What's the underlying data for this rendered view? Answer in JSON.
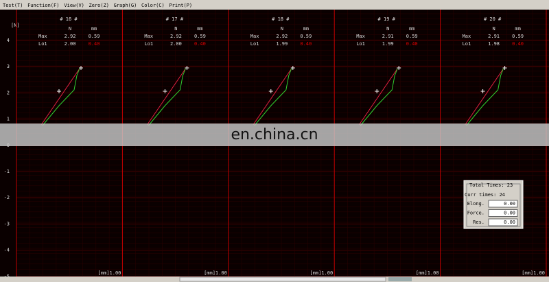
{
  "menu": [
    "Test(T)",
    "Function(F)",
    "View(V)",
    "Zero(Z)",
    "Graph(G)",
    "Color(C)",
    "Print(P)"
  ],
  "axis": {
    "unit": "[N]",
    "ticks": [
      "4",
      "3",
      "2",
      "1",
      "0",
      "-1",
      "-2",
      "-3",
      "-4",
      "-5"
    ]
  },
  "columns": [
    "N",
    "mm"
  ],
  "panels": [
    {
      "title": "# 16 #",
      "rows": [
        [
          "Max",
          "2.92",
          "0.59"
        ],
        [
          "Lo1",
          "2.00",
          "0.40"
        ]
      ],
      "x_label": "[mm]1.00"
    },
    {
      "title": "# 17 #",
      "rows": [
        [
          "Max",
          "2.92",
          "0.59"
        ],
        [
          "Lo1",
          "2.00",
          "0.40"
        ]
      ],
      "x_label": "[mm]1.00"
    },
    {
      "title": "# 18 #",
      "rows": [
        [
          "Max",
          "2.92",
          "0.59"
        ],
        [
          "Lo1",
          "1.99",
          "0.40"
        ]
      ],
      "x_label": "[mm]1.00"
    },
    {
      "title": "# 19 #",
      "rows": [
        [
          "Max",
          "2.91",
          "0.59"
        ],
        [
          "Lo1",
          "1.99",
          "0.40"
        ]
      ],
      "x_label": "[mm]1.00"
    },
    {
      "title": "# 20 #",
      "rows": [
        [
          "Max",
          "2.91",
          "0.59"
        ],
        [
          "Lo1",
          "1.98",
          "0.40"
        ]
      ],
      "x_label": "[mm]1.00"
    }
  ],
  "info": {
    "total": "Total Times: 23",
    "current": "Curr times: 24",
    "fields": [
      {
        "label": "Elong.",
        "value": "0.00"
      },
      {
        "label": "Force.",
        "value": "0.00"
      },
      {
        "label": "Res.",
        "value": "0.00"
      }
    ]
  },
  "watermark": "en.china.cn"
}
